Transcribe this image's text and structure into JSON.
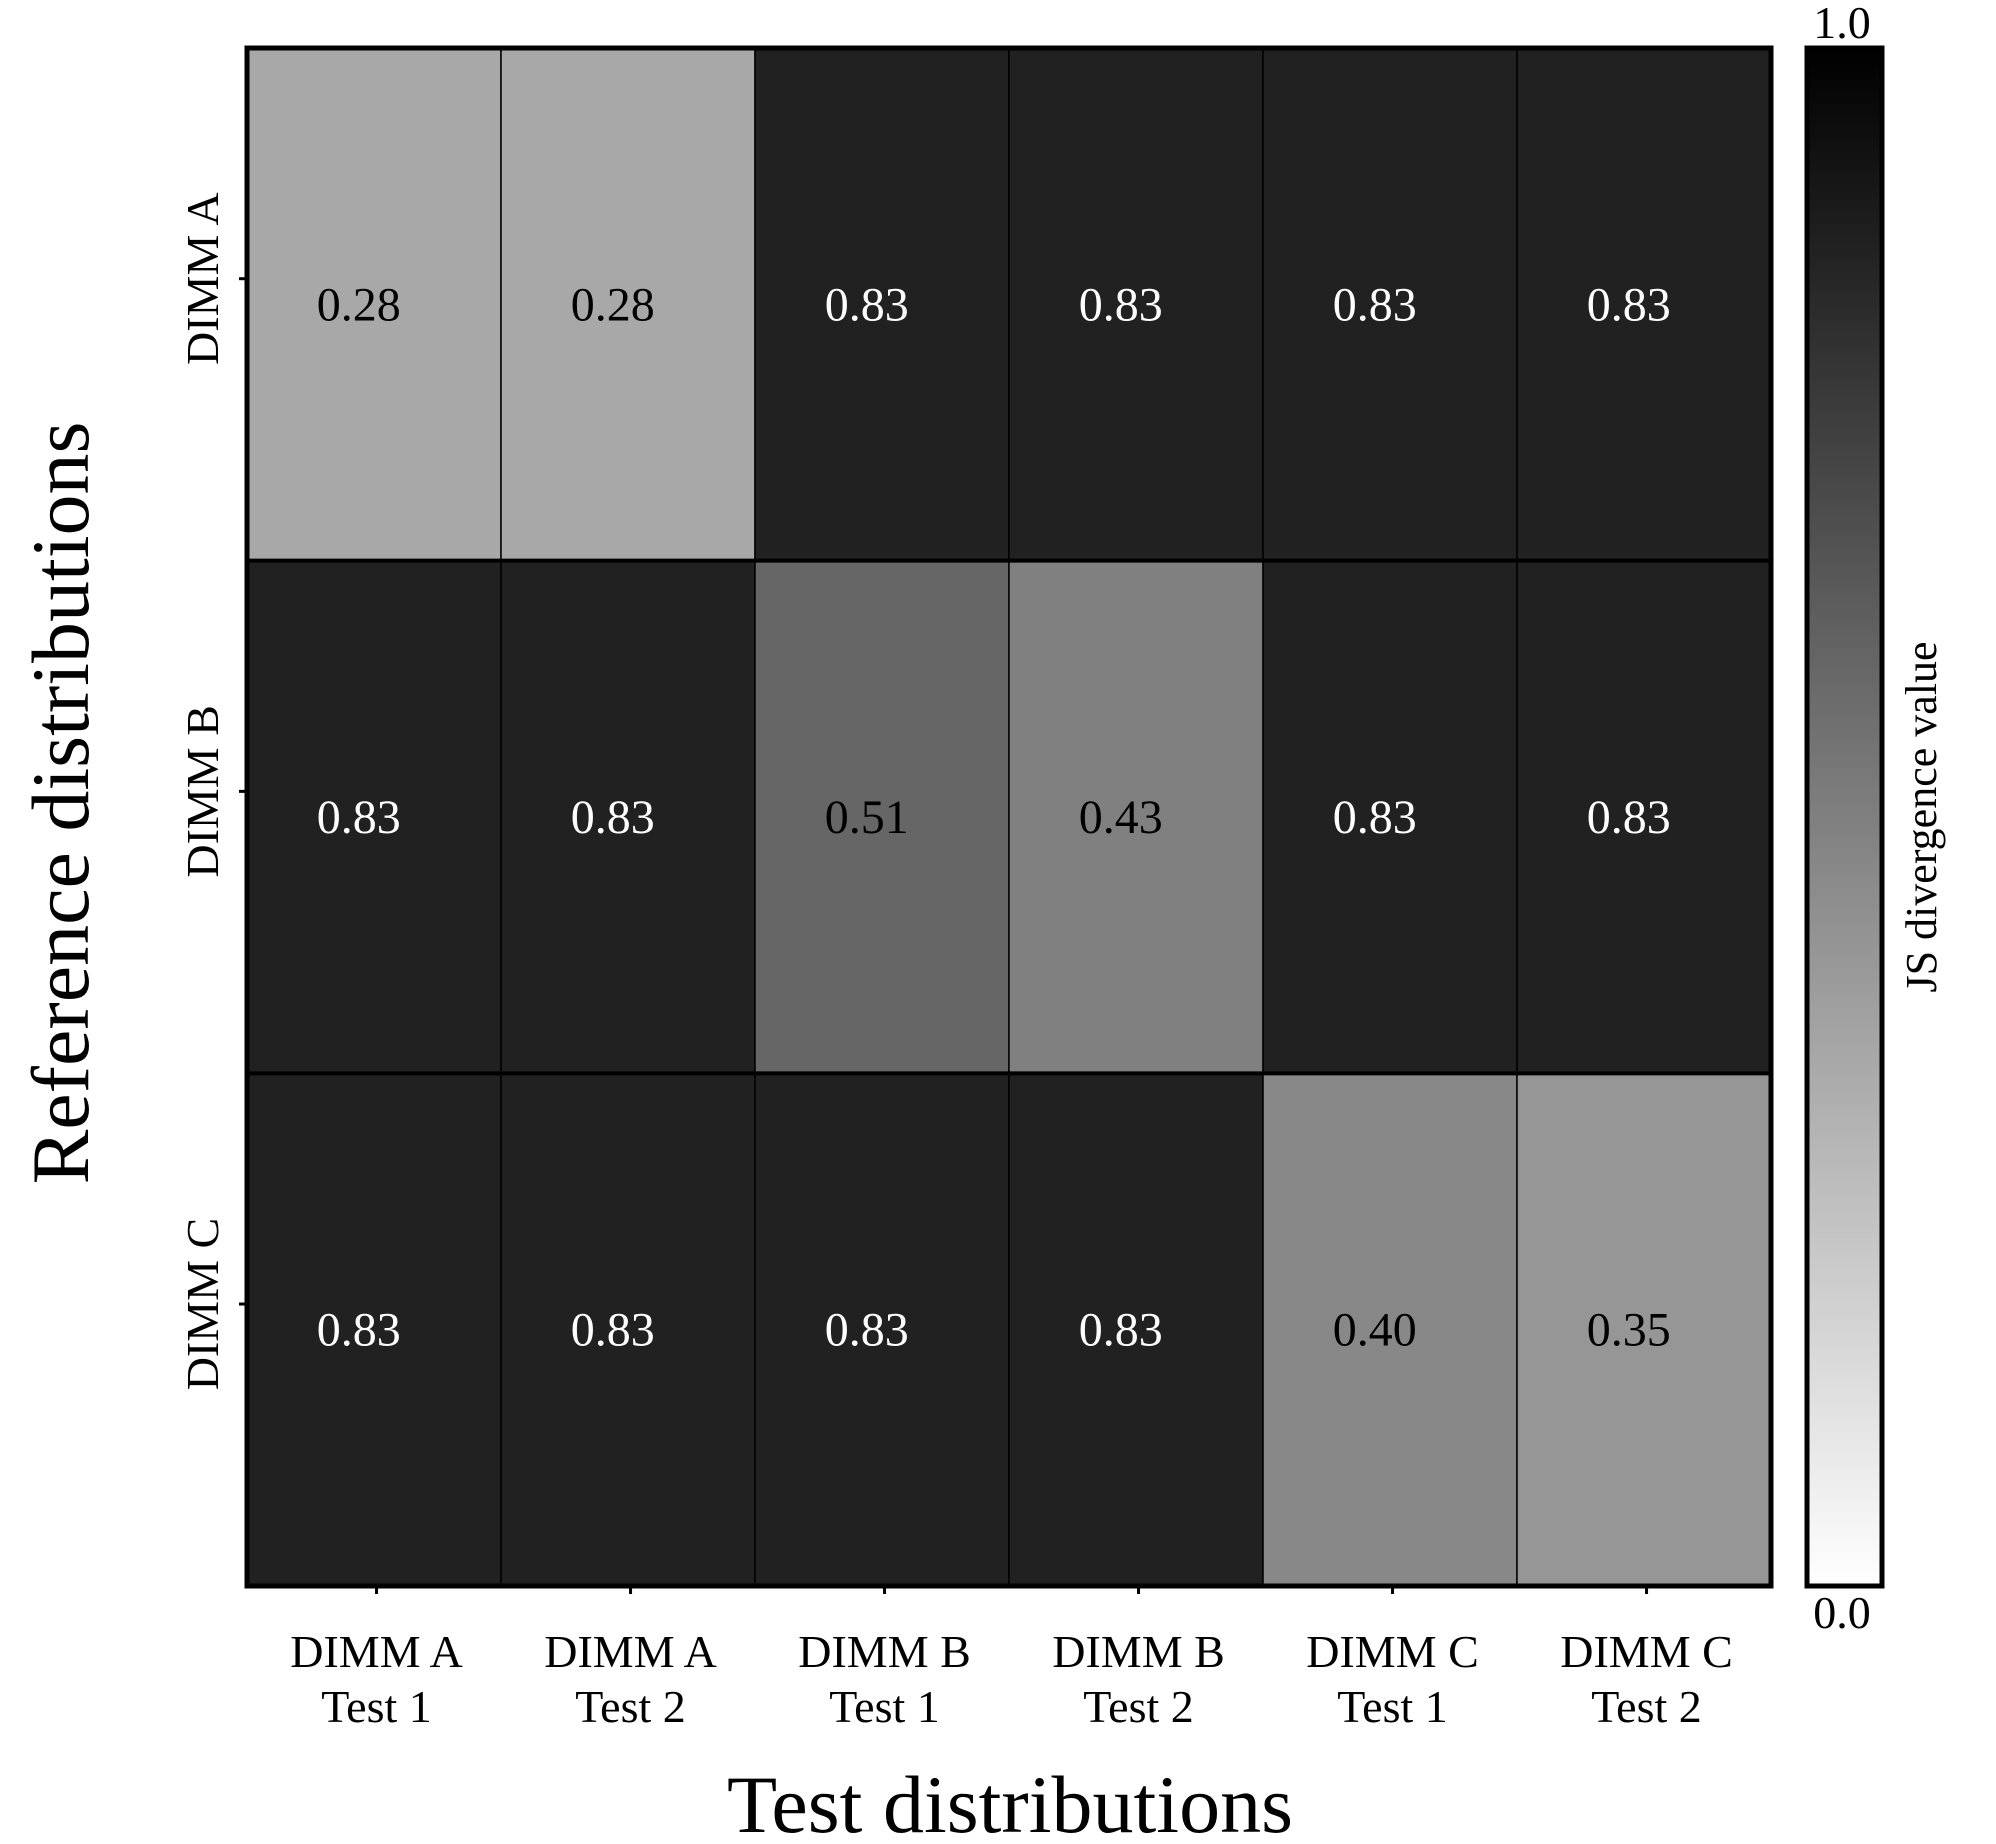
{
  "chart_data": {
    "type": "heatmap",
    "title": "",
    "xlabel": "Test distributions",
    "ylabel": "Reference distributions",
    "x_categories": [
      [
        "DIMM A",
        "Test 1"
      ],
      [
        "DIMM A",
        "Test 2"
      ],
      [
        "DIMM B",
        "Test 1"
      ],
      [
        "DIMM B",
        "Test 2"
      ],
      [
        "DIMM C",
        "Test 1"
      ],
      [
        "DIMM C",
        "Test 2"
      ]
    ],
    "y_categories": [
      "DIMM A",
      "DIMM B",
      "DIMM C"
    ],
    "values": [
      [
        0.28,
        0.28,
        0.83,
        0.83,
        0.83,
        0.83
      ],
      [
        0.83,
        0.83,
        0.51,
        0.43,
        0.83,
        0.83
      ],
      [
        0.83,
        0.83,
        0.83,
        0.83,
        0.4,
        0.35
      ]
    ],
    "value_labels": [
      [
        "0.28",
        "0.28",
        "0.83",
        "0.83",
        "0.83",
        "0.83"
      ],
      [
        "0.83",
        "0.83",
        "0.51",
        "0.43",
        "0.83",
        "0.83"
      ],
      [
        "0.83",
        "0.83",
        "0.83",
        "0.83",
        "0.40",
        "0.35"
      ]
    ],
    "colorbar": {
      "label": "JS divergence value",
      "min": 0.0,
      "max": 1.0,
      "min_label": "0.0",
      "max_label": "1.0",
      "colormap": "greys",
      "low_color": "#ffffff",
      "high_color": "#000000"
    },
    "grid": false
  }
}
